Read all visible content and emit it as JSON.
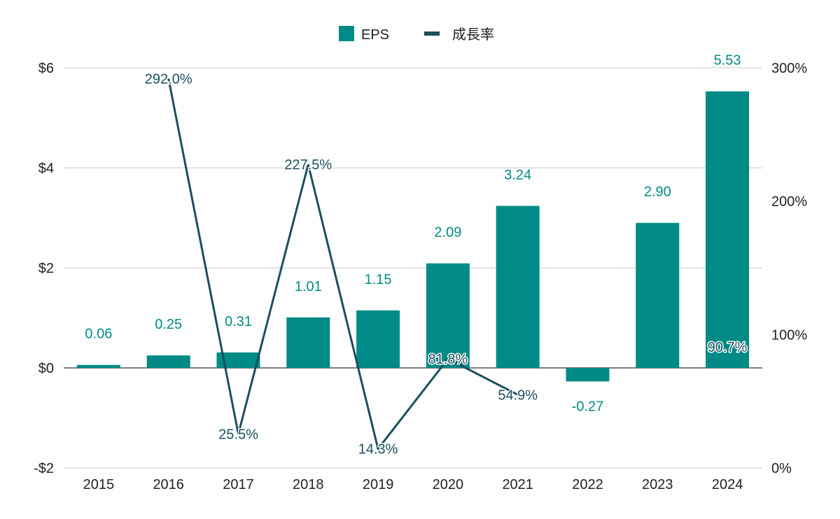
{
  "chart_data": {
    "type": "bar",
    "title": "",
    "xlabel": "",
    "ylabel": "",
    "categories": [
      "2015",
      "2016",
      "2017",
      "2018",
      "2019",
      "2020",
      "2021",
      "2022",
      "2023",
      "2024"
    ],
    "series": [
      {
        "name": "EPS",
        "type": "bar",
        "axis": "left",
        "color": "#008b86",
        "values": [
          0.06,
          0.25,
          0.31,
          1.01,
          1.15,
          2.09,
          3.24,
          -0.27,
          2.9,
          5.53
        ],
        "labels": [
          "0.06",
          "0.25",
          "0.31",
          "1.01",
          "1.15",
          "2.09",
          "3.24",
          "-0.27",
          "2.90",
          "5.53"
        ]
      },
      {
        "name": "成長率",
        "type": "line",
        "axis": "right",
        "color": "#1b4f5e",
        "segments": [
          [
            1,
            7
          ],
          [
            9,
            9
          ]
        ],
        "values": [
          null,
          292.0,
          25.5,
          227.5,
          14.3,
          81.8,
          54.9,
          null,
          null,
          90.7
        ],
        "labels": [
          null,
          "292.0%",
          "25.5%",
          "227.5%",
          "14.3%",
          "81.8%",
          "54.9%",
          null,
          null,
          "90.7%"
        ]
      }
    ],
    "y_left": {
      "ylim": [
        -2,
        6
      ],
      "ticks": [
        -2,
        0,
        2,
        4,
        6
      ],
      "tick_labels": [
        "-$2",
        "$0",
        "$2",
        "$4",
        "$6"
      ]
    },
    "y_right": {
      "ylim": [
        0,
        300
      ],
      "ticks": [
        0,
        100,
        200,
        300
      ],
      "tick_labels": [
        "0%",
        "100%",
        "200%",
        "300%"
      ]
    },
    "grid": true,
    "legend": "top-center"
  }
}
